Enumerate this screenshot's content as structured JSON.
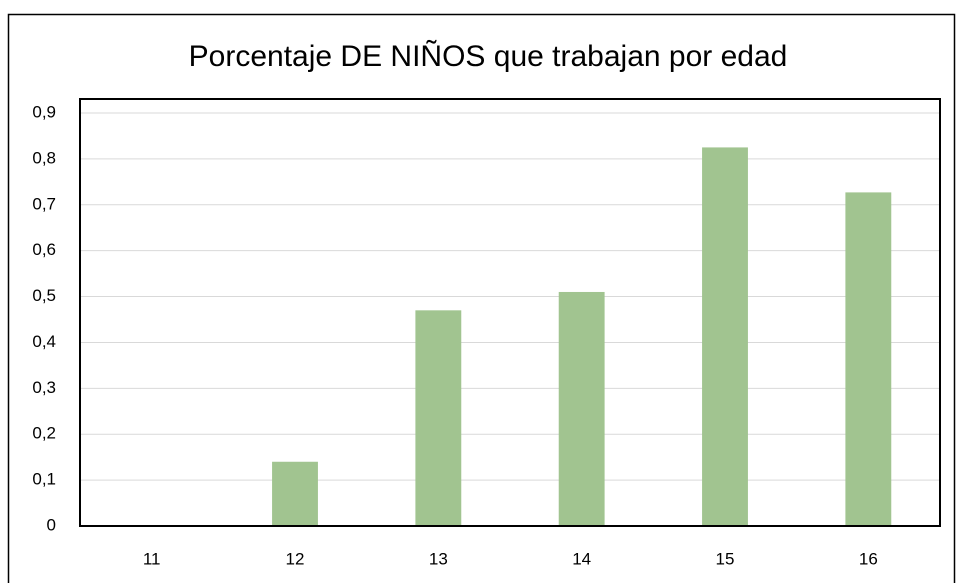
{
  "chart_data": {
    "type": "bar",
    "title": "Porcentaje DE NIÑOS que  trabajan por edad",
    "categories": [
      "11",
      "12",
      "13",
      "14",
      "15",
      "16"
    ],
    "values": [
      0,
      0.14,
      0.47,
      0.51,
      0.825,
      0.727
    ],
    "color": "#a1c490",
    "ylim": [
      0,
      0.9
    ],
    "yticks": [
      0,
      {
        "value": 0.1,
        "label": "0,1"
      },
      {
        "value": 0.2,
        "label": "0,2"
      },
      {
        "value": 0.3,
        "label": "0,3"
      },
      {
        "value": 0.4,
        "label": "0,4"
      },
      {
        "value": 0.5,
        "label": "0,5"
      },
      {
        "value": 0.6,
        "label": "0,6"
      },
      {
        "value": 0.7,
        "label": "0,7"
      },
      {
        "value": 0.8,
        "label": "0,8"
      },
      {
        "value": 0.9,
        "label": "0,9"
      }
    ],
    "grid": true
  }
}
